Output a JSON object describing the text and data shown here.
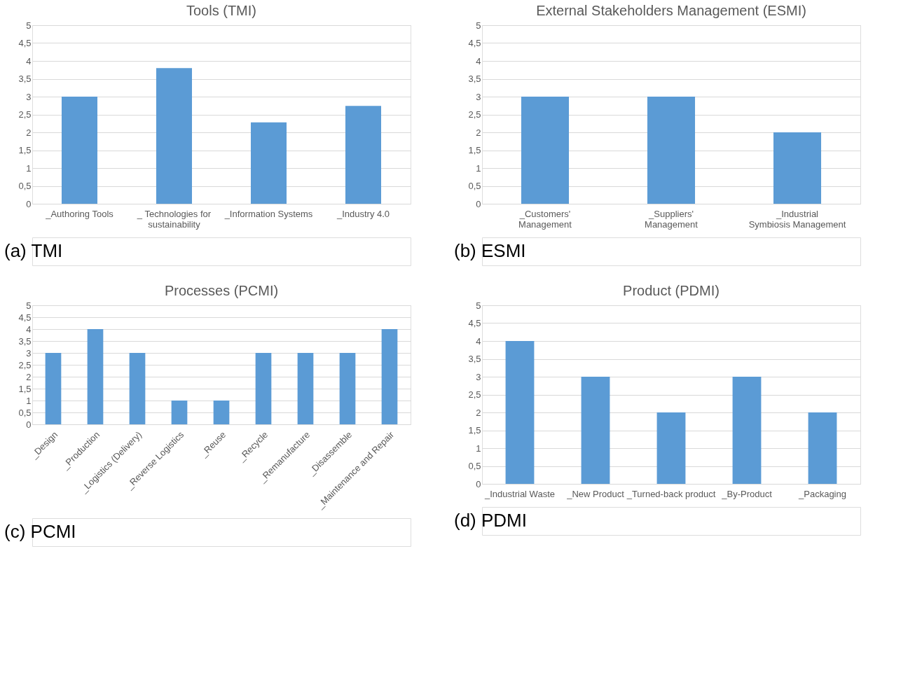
{
  "chart_data": [
    {
      "type": "bar",
      "title": "Tools (TMI)",
      "categories": [
        "_Authoring Tools",
        "_ Technologies for sustainability",
        "_Information Systems",
        "_Industry 4.0"
      ],
      "values": [
        3,
        3.8,
        2.28,
        2.74
      ],
      "color": "#5b9bd5",
      "ylim": [
        0,
        5
      ],
      "yticks": [
        0,
        {
          "value": 0.5,
          "label": "0,5"
        },
        1,
        {
          "value": 1.5,
          "label": "1,5"
        },
        2,
        {
          "value": 2.5,
          "label": "2,5"
        },
        3,
        {
          "value": 3.5,
          "label": "3,5"
        },
        4,
        {
          "value": 4.5,
          "label": "4,5"
        },
        5
      ],
      "grid": "y",
      "annotations": [
        "(a) TMI"
      ]
    },
    {
      "type": "bar",
      "title": "External Stakeholders Management (ESMI)",
      "categories": [
        "_Customers' Management",
        "_Suppliers' Management",
        "_Industrial Symbiosis Management"
      ],
      "values": [
        3,
        3,
        2
      ],
      "color": "#5b9bd5",
      "ylim": [
        0,
        5
      ],
      "yticks": [
        0,
        {
          "value": 0.5,
          "label": "0,5"
        },
        1,
        {
          "value": 1.5,
          "label": "1,5"
        },
        2,
        {
          "value": 2.5,
          "label": "2,5"
        },
        3,
        {
          "value": 3.5,
          "label": "3,5"
        },
        4,
        {
          "value": 4.5,
          "label": "4,5"
        },
        5
      ],
      "grid": "y",
      "annotations": [
        "(b) ESMI"
      ]
    },
    {
      "type": "bar",
      "title": "Processes (PCMI)",
      "categories": [
        "_Design",
        "_Production",
        "_Logistics (Delivery)",
        "_Reverse Logistics",
        "_Reuse",
        "_Recycle",
        "_Remanufacture",
        "_Disassemble",
        "_Maintenance and Repair"
      ],
      "values": [
        3,
        4,
        3,
        1,
        1,
        3,
        3,
        3,
        4
      ],
      "color": "#5b9bd5",
      "ylim": [
        0,
        5
      ],
      "yticks": [
        0,
        {
          "value": 0.5,
          "label": "0,5"
        },
        1,
        {
          "value": 1.5,
          "label": "1,5"
        },
        2,
        {
          "value": 2.5,
          "label": "2,5"
        },
        3,
        {
          "value": 3.5,
          "label": "3,5"
        },
        4,
        {
          "value": 4.5,
          "label": "4,5"
        },
        5
      ],
      "grid": "y",
      "annotations": [
        "(c) PCMI"
      ]
    },
    {
      "type": "bar",
      "title": "Product (PDMI)",
      "categories": [
        "_Industrial Waste",
        "_New Product",
        "_Turned-back product",
        "_By-Product",
        "_Packaging"
      ],
      "values": [
        4,
        3,
        2,
        3,
        2
      ],
      "color": "#5b9bd5",
      "ylim": [
        0,
        5
      ],
      "yticks": [
        0,
        {
          "value": 0.5,
          "label": "0,5"
        },
        1,
        {
          "value": 1.5,
          "label": "1,5"
        },
        2,
        {
          "value": 2.5,
          "label": "2,5"
        },
        3,
        {
          "value": 3.5,
          "label": "3,5"
        },
        4,
        {
          "value": 4.5,
          "label": "4,5"
        },
        5
      ],
      "grid": "y",
      "annotations": [
        "(d) PDMI"
      ]
    }
  ]
}
